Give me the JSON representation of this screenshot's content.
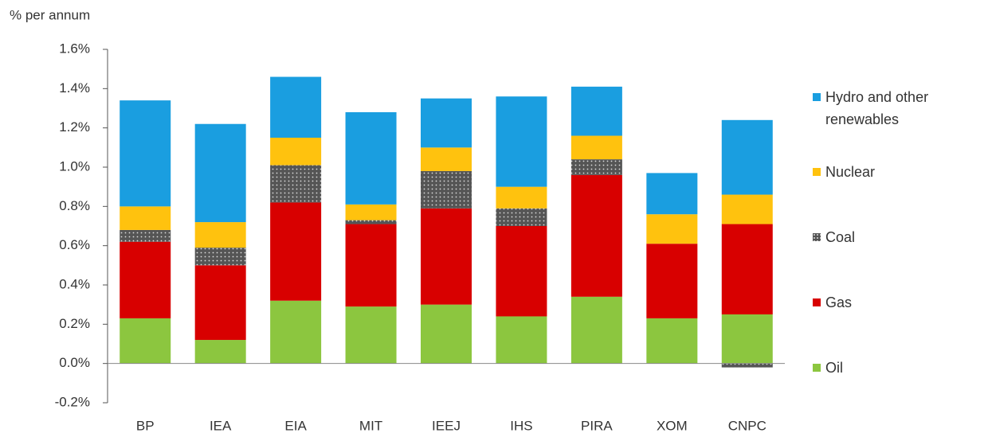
{
  "chart_data": {
    "type": "stacked_bar",
    "y_label": "% per annum",
    "categories": [
      "BP",
      "IEA",
      "EIA",
      "MIT",
      "IEEJ",
      "IHS",
      "PIRA",
      "XOM",
      "CNPC"
    ],
    "series": [
      {
        "name": "Oil",
        "color": "#8cc63f",
        "values": [
          0.23,
          0.12,
          0.32,
          0.29,
          0.3,
          0.24,
          0.34,
          0.23,
          0.25
        ]
      },
      {
        "name": "Gas",
        "color": "#d80000",
        "values": [
          0.39,
          0.38,
          0.5,
          0.42,
          0.49,
          0.46,
          0.62,
          0.38,
          0.46
        ]
      },
      {
        "name": "Coal",
        "color": "#555555",
        "pattern": "dots",
        "values": [
          0.06,
          0.09,
          0.19,
          0.02,
          0.19,
          0.09,
          0.08,
          0,
          -0.02
        ]
      },
      {
        "name": "Nuclear",
        "color": "#ffc20e",
        "values": [
          0.12,
          0.13,
          0.14,
          0.08,
          0.12,
          0.11,
          0.12,
          0.15,
          0.15
        ]
      },
      {
        "name": "Hydro and other renewables",
        "color": "#1a9ee0",
        "values": [
          0.54,
          0.5,
          0.31,
          0.47,
          0.25,
          0.46,
          0.25,
          0.21,
          0.38
        ]
      }
    ],
    "ylim": [
      -0.2,
      1.6
    ],
    "yticks": [
      {
        "value": -0.2,
        "label": "-0.2%"
      },
      {
        "value": 0,
        "label": "0.0%"
      },
      {
        "value": 0.2,
        "label": "0.2%"
      },
      {
        "value": 0.4,
        "label": "0.4%"
      },
      {
        "value": 0.6,
        "label": "0.6%"
      },
      {
        "value": 0.8,
        "label": "0.8%"
      },
      {
        "value": 1.0,
        "label": "1.0%"
      },
      {
        "value": 1.2,
        "label": "1.2%"
      },
      {
        "value": 1.4,
        "label": "1.4%"
      },
      {
        "value": 1.6,
        "label": "1.6%"
      }
    ],
    "grid": false,
    "legend": "right"
  }
}
